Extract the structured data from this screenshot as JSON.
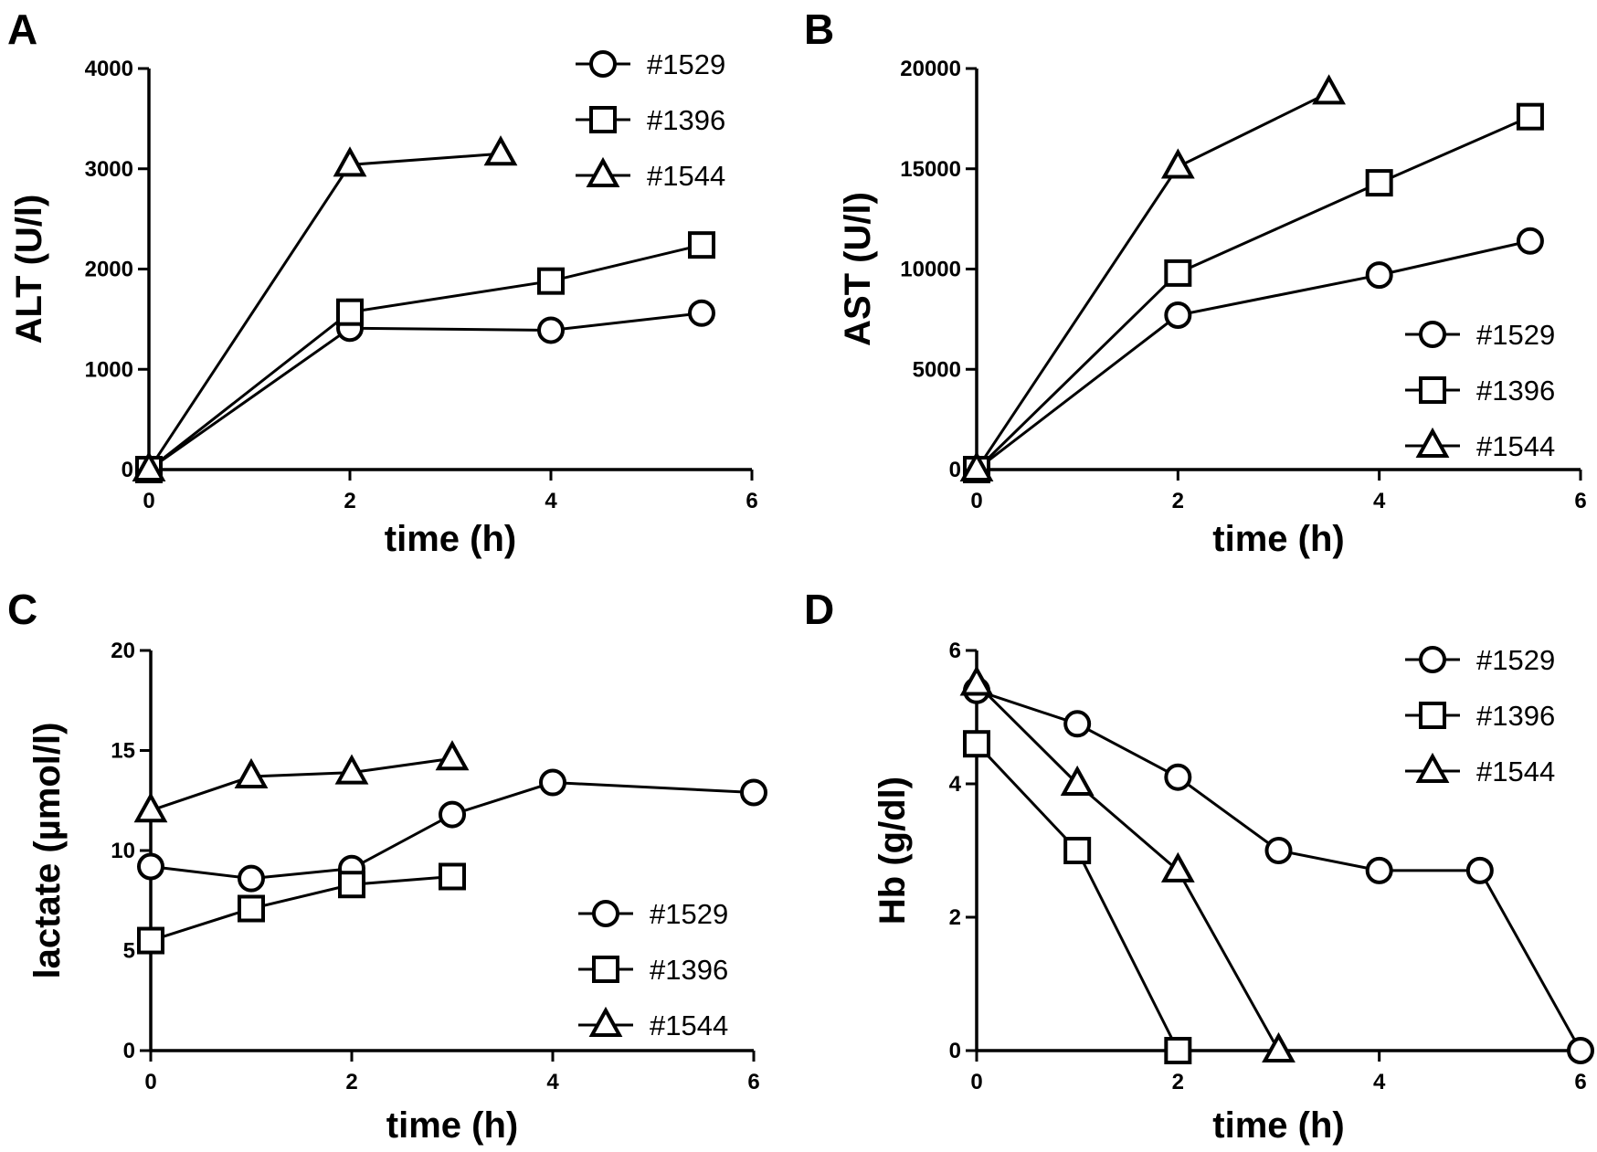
{
  "chart_data": [
    {
      "panel": "A",
      "type": "line",
      "title": "",
      "xlabel": "time (h)",
      "ylabel": "ALT (U/l)",
      "xlim": [
        0,
        6
      ],
      "ylim": [
        0,
        4000
      ],
      "xticks": [
        "0",
        "2",
        "4",
        "6"
      ],
      "yticks": [
        "0",
        "1000",
        "2000",
        "3000",
        "4000"
      ],
      "legend_position": "top-right",
      "series": [
        {
          "name": "#1529",
          "marker": "circle",
          "x": [
            0,
            2,
            4,
            5.5
          ],
          "y": [
            0,
            1410,
            1390,
            1560
          ]
        },
        {
          "name": "#1396",
          "marker": "square",
          "x": [
            0,
            2,
            4,
            5.5
          ],
          "y": [
            0,
            1570,
            1880,
            2240
          ]
        },
        {
          "name": "#1544",
          "marker": "triangle",
          "x": [
            0,
            2,
            3.5
          ],
          "y": [
            0,
            3040,
            3150
          ]
        }
      ]
    },
    {
      "panel": "B",
      "type": "line",
      "title": "",
      "xlabel": "time (h)",
      "ylabel": "AST (U/l)",
      "xlim": [
        0,
        6
      ],
      "ylim": [
        0,
        20000
      ],
      "xticks": [
        "0",
        "2",
        "4",
        "6"
      ],
      "yticks": [
        "0",
        "5000",
        "10000",
        "15000",
        "20000"
      ],
      "legend_position": "bottom-right",
      "series": [
        {
          "name": "#1529",
          "marker": "circle",
          "x": [
            0,
            2,
            4,
            5.5
          ],
          "y": [
            0,
            7700,
            9700,
            11400
          ]
        },
        {
          "name": "#1396",
          "marker": "square",
          "x": [
            0,
            2,
            4,
            5.5
          ],
          "y": [
            0,
            9800,
            14300,
            17600
          ]
        },
        {
          "name": "#1544",
          "marker": "triangle",
          "x": [
            0,
            2,
            3.5
          ],
          "y": [
            0,
            15100,
            18800
          ]
        }
      ]
    },
    {
      "panel": "C",
      "type": "line",
      "title": "",
      "xlabel": "time (h)",
      "ylabel": "lactate (µmol/l)",
      "xlim": [
        0,
        6
      ],
      "ylim": [
        0,
        20
      ],
      "xticks": [
        "0",
        "2",
        "4",
        "6"
      ],
      "yticks": [
        "0",
        "5",
        "10",
        "15",
        "20"
      ],
      "legend_position": "bottom-right",
      "series": [
        {
          "name": "#1529",
          "marker": "circle",
          "x": [
            0,
            1,
            2,
            3,
            4,
            6
          ],
          "y": [
            9.2,
            8.6,
            9.1,
            11.8,
            13.4,
            12.9
          ]
        },
        {
          "name": "#1396",
          "marker": "square",
          "x": [
            0,
            1,
            2,
            3
          ],
          "y": [
            5.5,
            7.1,
            8.3,
            8.7
          ]
        },
        {
          "name": "#1544",
          "marker": "triangle",
          "x": [
            0,
            1,
            2,
            3
          ],
          "y": [
            12.0,
            13.7,
            13.9,
            14.6
          ]
        }
      ]
    },
    {
      "panel": "D",
      "type": "line",
      "title": "",
      "xlabel": "time (h)",
      "ylabel": "Hb (g/dl)",
      "xlim": [
        0,
        6
      ],
      "ylim": [
        0,
        6
      ],
      "xticks": [
        "0",
        "2",
        "4",
        "6"
      ],
      "yticks": [
        "0",
        "2",
        "4",
        "6"
      ],
      "legend_position": "top-right",
      "series": [
        {
          "name": "#1529",
          "marker": "circle",
          "x": [
            0,
            1,
            2,
            3,
            4,
            5,
            6
          ],
          "y": [
            5.4,
            4.9,
            4.1,
            3.0,
            2.7,
            2.7,
            0
          ]
        },
        {
          "name": "#1396",
          "marker": "square",
          "x": [
            0,
            1,
            2
          ],
          "y": [
            4.6,
            3.0,
            0
          ]
        },
        {
          "name": "#1544",
          "marker": "triangle",
          "x": [
            0,
            1,
            2,
            3
          ],
          "y": [
            5.5,
            4.0,
            2.7,
            0
          ]
        }
      ]
    }
  ]
}
